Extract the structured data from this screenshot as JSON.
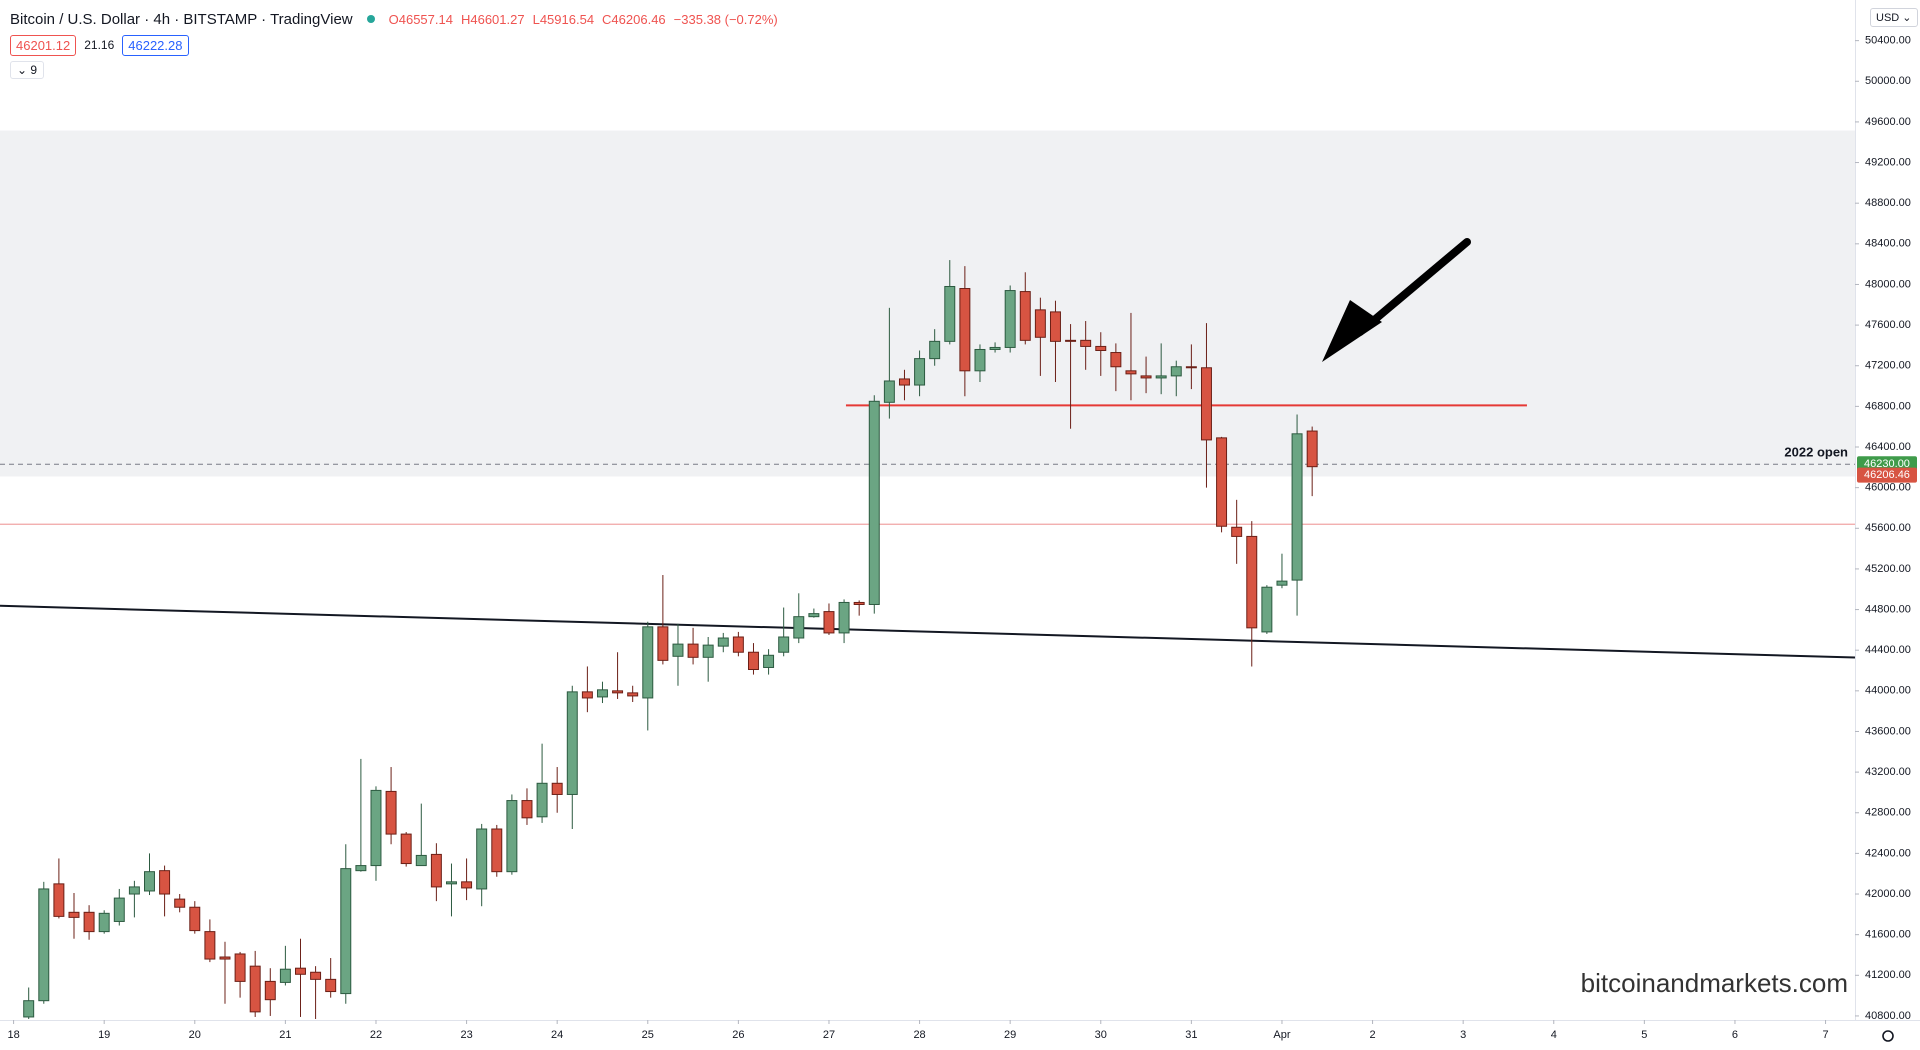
{
  "chart_data": {
    "type": "candlestick",
    "title": "Bitcoin / U.S. Dollar · 4h · BITSTAMP · TradingView",
    "ohlc_labels": [
      "O46557.14",
      "H46601.27",
      "L45916.54",
      "C46206.46",
      "−335.38 (−0.72%)"
    ],
    "bid": "46201.12",
    "spread": "21.16",
    "ask": "46222.28",
    "indicator_count": "9",
    "currency": "USD",
    "watermark": "bitcoinandmarkets.com",
    "x": [
      4,
      8,
      12,
      16,
      20,
      24,
      28,
      32,
      36,
      40,
      44,
      48,
      52,
      56,
      60,
      64,
      68,
      72,
      76,
      80,
      84,
      88,
      92,
      96,
      100,
      104,
      108,
      112,
      116,
      120,
      124,
      128,
      132,
      136,
      140,
      144,
      148,
      152,
      156,
      160,
      164,
      168,
      172,
      176,
      180,
      184,
      188,
      192,
      196,
      200,
      204,
      208,
      212,
      216,
      220,
      224,
      228,
      232,
      236,
      240,
      244,
      248,
      252,
      256,
      260,
      264,
      268,
      272,
      276,
      280,
      284,
      288,
      292,
      296,
      300,
      304,
      308,
      312,
      316,
      320,
      324,
      328,
      332,
      336,
      340,
      344
    ],
    "open": [
      40790,
      40950,
      42100,
      41820,
      41820,
      41630,
      41730,
      42000,
      42030,
      42230,
      41950,
      41870,
      41630,
      41380,
      41410,
      41290,
      41140,
      41130,
      41270,
      41230,
      41160,
      41020,
      42230,
      42280,
      43010,
      42590,
      42280,
      42390,
      42100,
      42120,
      42050,
      42640,
      42220,
      42920,
      42760,
      43090,
      42980,
      43990,
      43940,
      44000,
      43980,
      43930,
      44630,
      44340,
      44460,
      44330,
      44440,
      44530,
      44380,
      44230,
      44380,
      44520,
      44730,
      44780,
      44570,
      44870,
      44850,
      46840,
      47070,
      47010,
      47270,
      47440,
      47960,
      47150,
      47360,
      47380,
      47930,
      47750,
      47730,
      47450,
      47450,
      47390,
      47330,
      47150,
      47100,
      47080,
      47100,
      47190,
      47180,
      46490,
      45610,
      45520,
      44580,
      45040,
      45090,
      46557.14
    ],
    "high": [
      41080,
      42120,
      42350,
      42010,
      41890,
      41840,
      42050,
      42130,
      42400,
      42280,
      42000,
      41930,
      41750,
      41530,
      41430,
      41440,
      41270,
      41490,
      41560,
      41290,
      41370,
      42490,
      43330,
      43060,
      43250,
      42610,
      42890,
      42500,
      42300,
      42350,
      42690,
      42680,
      42980,
      43040,
      43480,
      43250,
      44050,
      44240,
      44090,
      44380,
      44050,
      44680,
      45140,
      44660,
      44620,
      44530,
      44570,
      44580,
      44470,
      44410,
      44820,
      44960,
      44810,
      44860,
      44900,
      44890,
      46910,
      47770,
      47160,
      47350,
      47560,
      48240,
      48180,
      47410,
      47430,
      47990,
      48120,
      47870,
      47840,
      47610,
      47640,
      47530,
      47420,
      47720,
      47290,
      47420,
      47250,
      47410,
      47620,
      46500,
      45880,
      45670,
      45040,
      45350,
      46720,
      46601.27
    ],
    "low": [
      40770,
      40920,
      41760,
      41560,
      41550,
      41610,
      41690,
      41770,
      41990,
      41780,
      41820,
      41610,
      41330,
      40920,
      40980,
      40790,
      40800,
      41100,
      40790,
      40770,
      40980,
      40920,
      42220,
      42130,
      42490,
      42270,
      42320,
      41930,
      41780,
      41940,
      41880,
      42170,
      42190,
      42680,
      42700,
      42800,
      42640,
      43790,
      43880,
      43920,
      43890,
      43610,
      44260,
      44050,
      44260,
      44090,
      44380,
      44340,
      44160,
      44160,
      44340,
      44470,
      44720,
      44550,
      44470,
      44740,
      44760,
      46680,
      46860,
      46900,
      47200,
      47410,
      46900,
      47040,
      47330,
      47330,
      47410,
      47100,
      47040,
      46580,
      47160,
      47100,
      46950,
      46860,
      46930,
      46920,
      46900,
      46970,
      46000,
      45560,
      45250,
      44240,
      44560,
      45010,
      44740,
      45916.54
    ],
    "close": [
      40950,
      42050,
      41780,
      41770,
      41630,
      41810,
      41960,
      42070,
      42220,
      42000,
      41870,
      41640,
      41360,
      41360,
      41140,
      40840,
      40960,
      41260,
      41210,
      41160,
      41040,
      42250,
      42280,
      43020,
      42590,
      42300,
      42380,
      42070,
      42120,
      42060,
      42640,
      42220,
      42920,
      42750,
      43090,
      42980,
      43990,
      43930,
      44010,
      43980,
      43950,
      44630,
      44300,
      44460,
      44330,
      44450,
      44520,
      44380,
      44210,
      44350,
      44530,
      44730,
      44760,
      44570,
      44870,
      44850,
      46850,
      47050,
      47010,
      47270,
      47440,
      47980,
      47150,
      47360,
      47380,
      47940,
      47450,
      47480,
      47440,
      47440,
      47390,
      47350,
      47190,
      47120,
      47080,
      47100,
      47190,
      47180,
      46470,
      45620,
      45520,
      44620,
      45020,
      45080,
      46530,
      46206.46
    ],
    "up_color": "#6ba583",
    "down_color": "#d75442",
    "xlim": [
      -3.6,
      487.8
    ],
    "xticks": [
      {
        "value": 0,
        "label": "18"
      },
      {
        "value": 24,
        "label": "19"
      },
      {
        "value": 48,
        "label": "20"
      },
      {
        "value": 72,
        "label": "21"
      },
      {
        "value": 96,
        "label": "22"
      },
      {
        "value": 120,
        "label": "23"
      },
      {
        "value": 144,
        "label": "24"
      },
      {
        "value": 168,
        "label": "25"
      },
      {
        "value": 192,
        "label": "26"
      },
      {
        "value": 216,
        "label": "27"
      },
      {
        "value": 240,
        "label": "28"
      },
      {
        "value": 264,
        "label": "29"
      },
      {
        "value": 288,
        "label": "30"
      },
      {
        "value": 312,
        "label": "31"
      },
      {
        "value": 336,
        "label": "Apr"
      },
      {
        "value": 360,
        "label": "2"
      },
      {
        "value": 384,
        "label": "3"
      },
      {
        "value": 408,
        "label": "4"
      },
      {
        "value": 432,
        "label": "5"
      },
      {
        "value": 456,
        "label": "6"
      },
      {
        "value": 480,
        "label": "7"
      }
    ],
    "ylim": [
      40760,
      50800
    ],
    "yticks": [
      {
        "value": 40800,
        "label": "40800.00"
      },
      {
        "value": 41200,
        "label": "41200.00"
      },
      {
        "value": 41600,
        "label": "41600.00"
      },
      {
        "value": 42000,
        "label": "42000.00"
      },
      {
        "value": 42400,
        "label": "42400.00"
      },
      {
        "value": 42800,
        "label": "42800.00"
      },
      {
        "value": 43200,
        "label": "43200.00"
      },
      {
        "value": 43600,
        "label": "43600.00"
      },
      {
        "value": 44000,
        "label": "44000.00"
      },
      {
        "value": 44400,
        "label": "44400.00"
      },
      {
        "value": 44800,
        "label": "44800.00"
      },
      {
        "value": 45200,
        "label": "45200.00"
      },
      {
        "value": 45600,
        "label": "45600.00"
      },
      {
        "value": 46000,
        "label": "46000.00"
      },
      {
        "value": 46400,
        "label": "46400.00"
      },
      {
        "value": 46800,
        "label": "46800.00"
      },
      {
        "value": 47200,
        "label": "47200.00"
      },
      {
        "value": 47600,
        "label": "47600.00"
      },
      {
        "value": 48000,
        "label": "48000.00"
      },
      {
        "value": 48400,
        "label": "48400.00"
      },
      {
        "value": 48800,
        "label": "48800.00"
      },
      {
        "value": 49200,
        "label": "49200.00"
      },
      {
        "value": 49600,
        "label": "49600.00"
      },
      {
        "value": 50000,
        "label": "50000.00"
      },
      {
        "value": 50400,
        "label": "50400.00"
      }
    ],
    "grid": false,
    "zone": {
      "range": [
        46110,
        49515
      ],
      "color": "#f0f1f3"
    },
    "levels": [
      {
        "value": 46810,
        "x": [
          220.5,
          400.9
        ],
        "color": "#e53935"
      },
      {
        "value": 45640,
        "color": "#f1a5a5"
      }
    ],
    "open_2022": {
      "label": "2022 open",
      "value": 46230,
      "value_label": "46230.00",
      "color": "#3f9b4a"
    },
    "trendline": {
      "x": [
        -3.6,
        487.8
      ],
      "y": [
        44837,
        44328
      ],
      "color": "#131722"
    }
  }
}
